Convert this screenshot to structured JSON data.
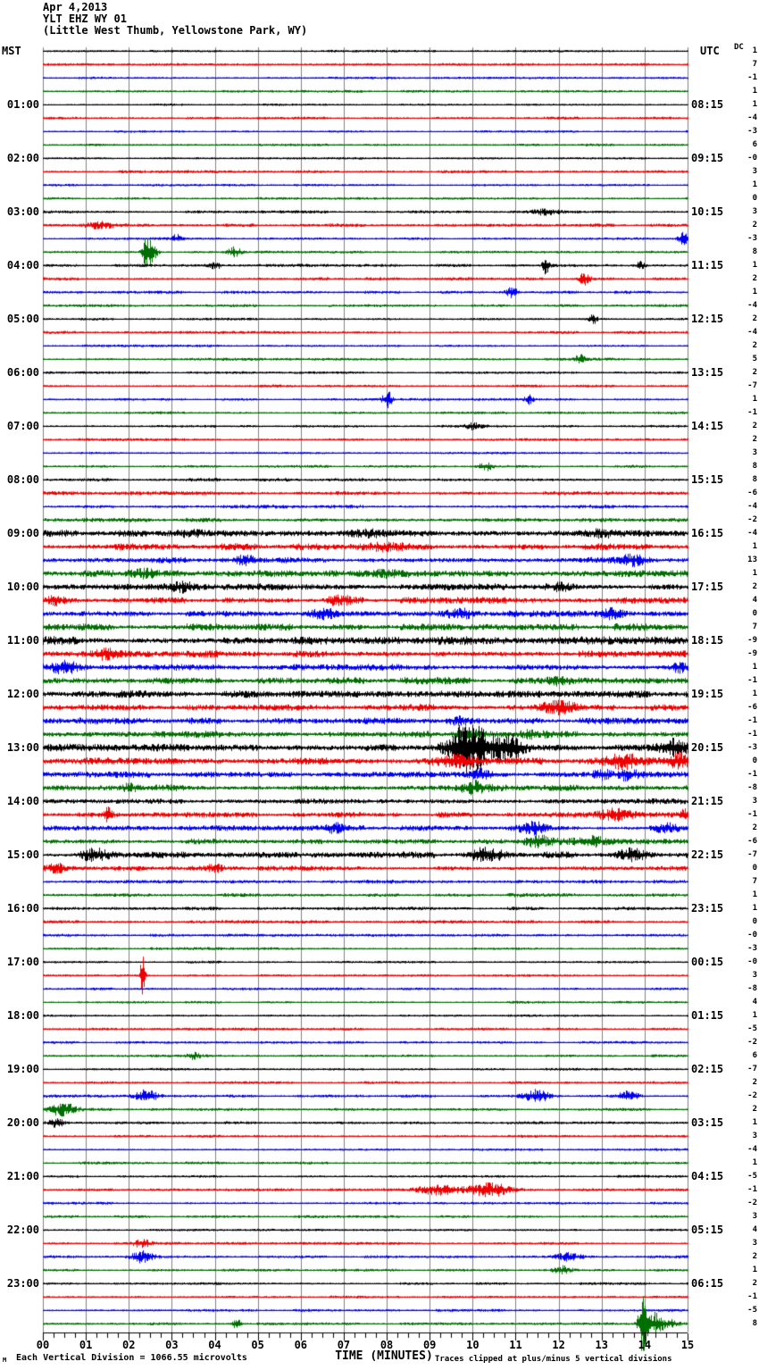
{
  "header": {
    "date": "Apr 4,2013",
    "station": "YLT EHZ WY 01",
    "location": "(Little West Thumb, Yellowstone Park, WY)"
  },
  "columns": {
    "left_time_header": "MST",
    "right_time_header": "UTC",
    "dc_header": "DC"
  },
  "x_axis": {
    "title": "TIME (MINUTES)"
  },
  "footer": {
    "scale_note": "Each Vertical Division = 1066.55 microvolts",
    "clip_note": "Traces clipped at plus/minus 5 vertical divisions",
    "watermark": "M"
  },
  "chart_data": {
    "type": "line",
    "subtype": "helicorder-seismogram",
    "title": "YLT EHZ WY 01 (Little West Thumb, Yellowstone Park, WY) Apr 4,2013",
    "xlabel": "TIME (MINUTES)",
    "x_range_minutes": [
      0,
      15
    ],
    "x_ticks": [
      "00",
      "01",
      "02",
      "03",
      "04",
      "05",
      "06",
      "07",
      "08",
      "09",
      "10",
      "11",
      "12",
      "13",
      "14",
      "15"
    ],
    "minutes_per_line": 15,
    "lines_per_hour": 4,
    "clip_divisions": 5,
    "microvolts_per_division": 1066.55,
    "left_timezone": "MST",
    "right_timezone": "UTC",
    "grid": true,
    "grid_color": "#808080",
    "trace_colors": {
      "k": "#000000",
      "r": "#ee0000",
      "b": "#0000ee",
      "g": "#006e00"
    },
    "rows": [
      {
        "c": "k",
        "dc": "1",
        "n": 0.8
      },
      {
        "c": "r",
        "dc": "7",
        "n": 1.0
      },
      {
        "c": "b",
        "dc": "-1",
        "n": 0.8
      },
      {
        "c": "g",
        "dc": "1",
        "n": 0.9
      },
      {
        "c": "k",
        "dc": "1",
        "mst": "01:00",
        "utc": "08:15",
        "n": 0.8
      },
      {
        "c": "r",
        "dc": "-4",
        "n": 1.0
      },
      {
        "c": "b",
        "dc": "-3",
        "n": 0.8
      },
      {
        "c": "g",
        "dc": "6",
        "n": 0.9
      },
      {
        "c": "k",
        "dc": "-0",
        "mst": "02:00",
        "utc": "09:15",
        "n": 0.8
      },
      {
        "c": "r",
        "dc": "3",
        "n": 1.0
      },
      {
        "c": "b",
        "dc": "1",
        "n": 0.8
      },
      {
        "c": "g",
        "dc": "0",
        "n": 0.9
      },
      {
        "c": "k",
        "dc": "3",
        "mst": "03:00",
        "utc": "10:15",
        "n": 1.0,
        "e": [
          [
            11.7,
            0.3,
            3
          ]
        ]
      },
      {
        "c": "r",
        "dc": "2",
        "n": 1.2,
        "e": [
          [
            1.3,
            0.35,
            3
          ]
        ]
      },
      {
        "c": "b",
        "dc": "-3",
        "n": 0.9,
        "e": [
          [
            3.1,
            0.1,
            4
          ],
          [
            14.9,
            0.12,
            6
          ]
        ]
      },
      {
        "c": "g",
        "dc": "8",
        "n": 1.0,
        "e": [
          [
            2.4,
            0.1,
            14
          ],
          [
            2.55,
            0.12,
            8
          ],
          [
            4.45,
            0.15,
            5
          ]
        ]
      },
      {
        "c": "k",
        "dc": "1",
        "mst": "04:00",
        "utc": "11:15",
        "n": 1.1,
        "e": [
          [
            4.0,
            0.15,
            3
          ],
          [
            11.7,
            0.08,
            9
          ],
          [
            13.9,
            0.1,
            4
          ]
        ]
      },
      {
        "c": "r",
        "dc": "2",
        "n": 1.1,
        "e": [
          [
            12.6,
            0.12,
            6
          ]
        ]
      },
      {
        "c": "b",
        "dc": "1",
        "n": 1.0,
        "e": [
          [
            10.9,
            0.12,
            6
          ]
        ]
      },
      {
        "c": "g",
        "dc": "-4",
        "n": 1.0
      },
      {
        "c": "k",
        "dc": "2",
        "mst": "05:00",
        "utc": "12:15",
        "n": 0.9,
        "e": [
          [
            12.8,
            0.1,
            5
          ]
        ]
      },
      {
        "c": "r",
        "dc": "-4",
        "n": 1.0
      },
      {
        "c": "b",
        "dc": "2",
        "n": 0.9
      },
      {
        "c": "g",
        "dc": "5",
        "n": 1.0,
        "e": [
          [
            12.5,
            0.1,
            6
          ]
        ]
      },
      {
        "c": "k",
        "dc": "2",
        "mst": "06:00",
        "utc": "13:15",
        "n": 0.9
      },
      {
        "c": "r",
        "dc": "-7",
        "n": 1.0
      },
      {
        "c": "b",
        "dc": "1",
        "n": 0.9,
        "e": [
          [
            8.0,
            0.1,
            10
          ],
          [
            11.3,
            0.1,
            5
          ]
        ]
      },
      {
        "c": "g",
        "dc": "-1",
        "n": 1.0
      },
      {
        "c": "k",
        "dc": "2",
        "mst": "07:00",
        "utc": "14:15",
        "n": 0.9,
        "e": [
          [
            10.0,
            0.2,
            3
          ]
        ]
      },
      {
        "c": "r",
        "dc": "2",
        "n": 1.0
      },
      {
        "c": "b",
        "dc": "3",
        "n": 0.9
      },
      {
        "c": "g",
        "dc": "8",
        "n": 1.0,
        "e": [
          [
            10.3,
            0.15,
            4
          ]
        ]
      },
      {
        "c": "k",
        "dc": "8",
        "mst": "08:00",
        "utc": "15:15",
        "n": 1.3
      },
      {
        "c": "r",
        "dc": "-6",
        "n": 1.4
      },
      {
        "c": "b",
        "dc": "-4",
        "n": 1.3
      },
      {
        "c": "g",
        "dc": "-2",
        "n": 1.5
      },
      {
        "c": "k",
        "dc": "-4",
        "mst": "09:00",
        "utc": "16:15",
        "n": 2.6,
        "e": [
          [
            3.5,
            0.5,
            3
          ],
          [
            7.5,
            0.6,
            3
          ],
          [
            13.0,
            0.4,
            3
          ]
        ]
      },
      {
        "c": "r",
        "dc": "1",
        "n": 2.6,
        "e": [
          [
            7.9,
            0.5,
            4
          ]
        ]
      },
      {
        "c": "b",
        "dc": "13",
        "n": 2.2,
        "e": [
          [
            4.7,
            0.2,
            5
          ],
          [
            13.7,
            0.3,
            4
          ]
        ]
      },
      {
        "c": "g",
        "dc": "1",
        "n": 2.6,
        "e": [
          [
            2.3,
            0.3,
            4
          ],
          [
            8.0,
            0.4,
            3
          ]
        ]
      },
      {
        "c": "k",
        "dc": "2",
        "mst": "10:00",
        "utc": "17:15",
        "n": 2.6,
        "e": [
          [
            3.3,
            0.3,
            4
          ],
          [
            12.0,
            0.3,
            3
          ]
        ]
      },
      {
        "c": "r",
        "dc": "4",
        "n": 2.4,
        "e": [
          [
            0.3,
            0.2,
            4
          ],
          [
            6.9,
            0.3,
            3
          ]
        ]
      },
      {
        "c": "b",
        "dc": "0",
        "n": 2.4,
        "e": [
          [
            6.5,
            0.3,
            5
          ],
          [
            9.7,
            0.3,
            4
          ],
          [
            13.3,
            0.25,
            5
          ]
        ]
      },
      {
        "c": "g",
        "dc": "7",
        "n": 2.8
      },
      {
        "c": "k",
        "dc": "-9",
        "mst": "11:00",
        "utc": "18:15",
        "n": 3.2
      },
      {
        "c": "r",
        "dc": "-9",
        "n": 2.6,
        "e": [
          [
            1.5,
            0.3,
            5
          ]
        ]
      },
      {
        "c": "b",
        "dc": "1",
        "n": 2.4,
        "e": [
          [
            0.5,
            0.3,
            5
          ],
          [
            14.8,
            0.2,
            5
          ]
        ]
      },
      {
        "c": "g",
        "dc": "-1",
        "n": 2.6,
        "e": [
          [
            12.0,
            0.3,
            4
          ]
        ]
      },
      {
        "c": "k",
        "dc": "1",
        "mst": "12:00",
        "utc": "19:15",
        "n": 3.0
      },
      {
        "c": "r",
        "dc": "-6",
        "n": 2.4,
        "e": [
          [
            12.0,
            0.4,
            5
          ]
        ]
      },
      {
        "c": "b",
        "dc": "-1",
        "n": 2.4,
        "e": [
          [
            9.7,
            0.3,
            4
          ]
        ]
      },
      {
        "c": "g",
        "dc": "-1",
        "n": 2.6,
        "e": [
          [
            9.9,
            0.3,
            4
          ],
          [
            11.3,
            0.3,
            4
          ]
        ]
      },
      {
        "c": "k",
        "dc": "-3",
        "mst": "13:00",
        "utc": "20:15",
        "n": 3.0,
        "e": [
          [
            9.9,
            0.45,
            26
          ],
          [
            10.8,
            0.4,
            14
          ],
          [
            14.7,
            0.3,
            7
          ]
        ]
      },
      {
        "c": "r",
        "dc": "0",
        "n": 2.8,
        "e": [
          [
            9.6,
            0.5,
            7
          ],
          [
            13.5,
            0.4,
            6
          ],
          [
            14.8,
            0.2,
            7
          ]
        ]
      },
      {
        "c": "b",
        "dc": "-1",
        "n": 2.4,
        "e": [
          [
            10.2,
            0.2,
            6
          ],
          [
            13.0,
            0.2,
            5
          ],
          [
            13.6,
            0.2,
            5
          ]
        ]
      },
      {
        "c": "g",
        "dc": "-8",
        "n": 2.4,
        "e": [
          [
            2.0,
            0.2,
            4
          ],
          [
            10.0,
            0.3,
            5
          ]
        ]
      },
      {
        "c": "k",
        "dc": "3",
        "mst": "14:00",
        "utc": "21:15",
        "n": 2.0
      },
      {
        "c": "r",
        "dc": "-1",
        "n": 2.0,
        "e": [
          [
            1.5,
            0.12,
            6
          ],
          [
            13.3,
            0.4,
            5
          ],
          [
            14.9,
            0.12,
            6
          ]
        ]
      },
      {
        "c": "b",
        "dc": "2",
        "n": 2.0,
        "e": [
          [
            6.8,
            0.2,
            4
          ],
          [
            11.4,
            0.3,
            6
          ],
          [
            14.5,
            0.3,
            5
          ]
        ]
      },
      {
        "c": "g",
        "dc": "-6",
        "n": 2.2,
        "e": [
          [
            11.5,
            0.3,
            6
          ],
          [
            12.8,
            0.4,
            4
          ]
        ]
      },
      {
        "c": "k",
        "dc": "-7",
        "mst": "15:00",
        "utc": "22:15",
        "n": 2.4,
        "e": [
          [
            1.2,
            0.3,
            5
          ],
          [
            10.3,
            0.4,
            5
          ],
          [
            13.7,
            0.3,
            6
          ]
        ]
      },
      {
        "c": "r",
        "dc": "0",
        "n": 1.8,
        "e": [
          [
            0.3,
            0.2,
            4
          ],
          [
            4.0,
            0.2,
            3
          ]
        ]
      },
      {
        "c": "b",
        "dc": "7",
        "n": 1.4
      },
      {
        "c": "g",
        "dc": "1",
        "n": 1.4
      },
      {
        "c": "k",
        "dc": "1",
        "mst": "16:00",
        "utc": "23:15",
        "n": 1.2
      },
      {
        "c": "r",
        "dc": "0",
        "n": 1.2
      },
      {
        "c": "b",
        "dc": "-0",
        "n": 1.0
      },
      {
        "c": "g",
        "dc": "-3",
        "n": 1.0
      },
      {
        "c": "k",
        "dc": "-0",
        "mst": "17:00",
        "utc": "00:15",
        "n": 0.9
      },
      {
        "c": "r",
        "dc": "3",
        "n": 0.9,
        "e": [
          [
            2.31,
            0.05,
            30
          ]
        ]
      },
      {
        "c": "b",
        "dc": "-8",
        "n": 0.9
      },
      {
        "c": "g",
        "dc": "4",
        "n": 0.9
      },
      {
        "c": "k",
        "dc": "1",
        "mst": "18:00",
        "utc": "01:15",
        "n": 0.9
      },
      {
        "c": "r",
        "dc": "-5",
        "n": 1.0
      },
      {
        "c": "b",
        "dc": "-2",
        "n": 0.9
      },
      {
        "c": "g",
        "dc": "6",
        "n": 1.0,
        "e": [
          [
            3.5,
            0.15,
            3
          ]
        ]
      },
      {
        "c": "k",
        "dc": "-7",
        "mst": "19:00",
        "utc": "02:15",
        "n": 0.9
      },
      {
        "c": "r",
        "dc": "2",
        "n": 1.0
      },
      {
        "c": "b",
        "dc": "-2",
        "n": 1.0,
        "e": [
          [
            2.4,
            0.25,
            6
          ],
          [
            11.5,
            0.3,
            6
          ],
          [
            13.6,
            0.25,
            5
          ]
        ]
      },
      {
        "c": "g",
        "dc": "2",
        "n": 1.0,
        "e": [
          [
            0.45,
            0.3,
            7
          ]
        ]
      },
      {
        "c": "k",
        "dc": "1",
        "mst": "20:00",
        "utc": "03:15",
        "n": 1.0,
        "e": [
          [
            0.3,
            0.2,
            4
          ]
        ]
      },
      {
        "c": "r",
        "dc": "3",
        "n": 1.0
      },
      {
        "c": "b",
        "dc": "-4",
        "n": 0.9
      },
      {
        "c": "g",
        "dc": "1",
        "n": 1.0
      },
      {
        "c": "k",
        "dc": "-5",
        "mst": "21:00",
        "utc": "04:15",
        "n": 0.9
      },
      {
        "c": "r",
        "dc": "-1",
        "n": 1.1,
        "e": [
          [
            9.2,
            0.5,
            5
          ],
          [
            10.4,
            0.5,
            6
          ]
        ]
      },
      {
        "c": "b",
        "dc": "-2",
        "n": 0.9
      },
      {
        "c": "g",
        "dc": "3",
        "n": 1.0
      },
      {
        "c": "k",
        "dc": "4",
        "mst": "22:00",
        "utc": "05:15",
        "n": 0.9
      },
      {
        "c": "r",
        "dc": "3",
        "n": 1.0,
        "e": [
          [
            2.3,
            0.2,
            4
          ]
        ]
      },
      {
        "c": "b",
        "dc": "2",
        "n": 1.0,
        "e": [
          [
            2.3,
            0.25,
            6
          ],
          [
            12.2,
            0.3,
            4
          ]
        ]
      },
      {
        "c": "g",
        "dc": "1",
        "n": 1.0,
        "e": [
          [
            12.1,
            0.2,
            4
          ]
        ]
      },
      {
        "c": "k",
        "dc": "2",
        "mst": "23:00",
        "utc": "06:15",
        "n": 0.9
      },
      {
        "c": "r",
        "dc": "-1",
        "n": 1.0
      },
      {
        "c": "b",
        "dc": "-5",
        "n": 0.9
      },
      {
        "c": "g",
        "dc": "8",
        "n": 1.0,
        "e": [
          [
            4.5,
            0.08,
            7
          ],
          [
            13.95,
            0.09,
            34
          ],
          [
            14.15,
            0.2,
            10
          ],
          [
            14.45,
            0.3,
            5
          ]
        ]
      }
    ]
  }
}
